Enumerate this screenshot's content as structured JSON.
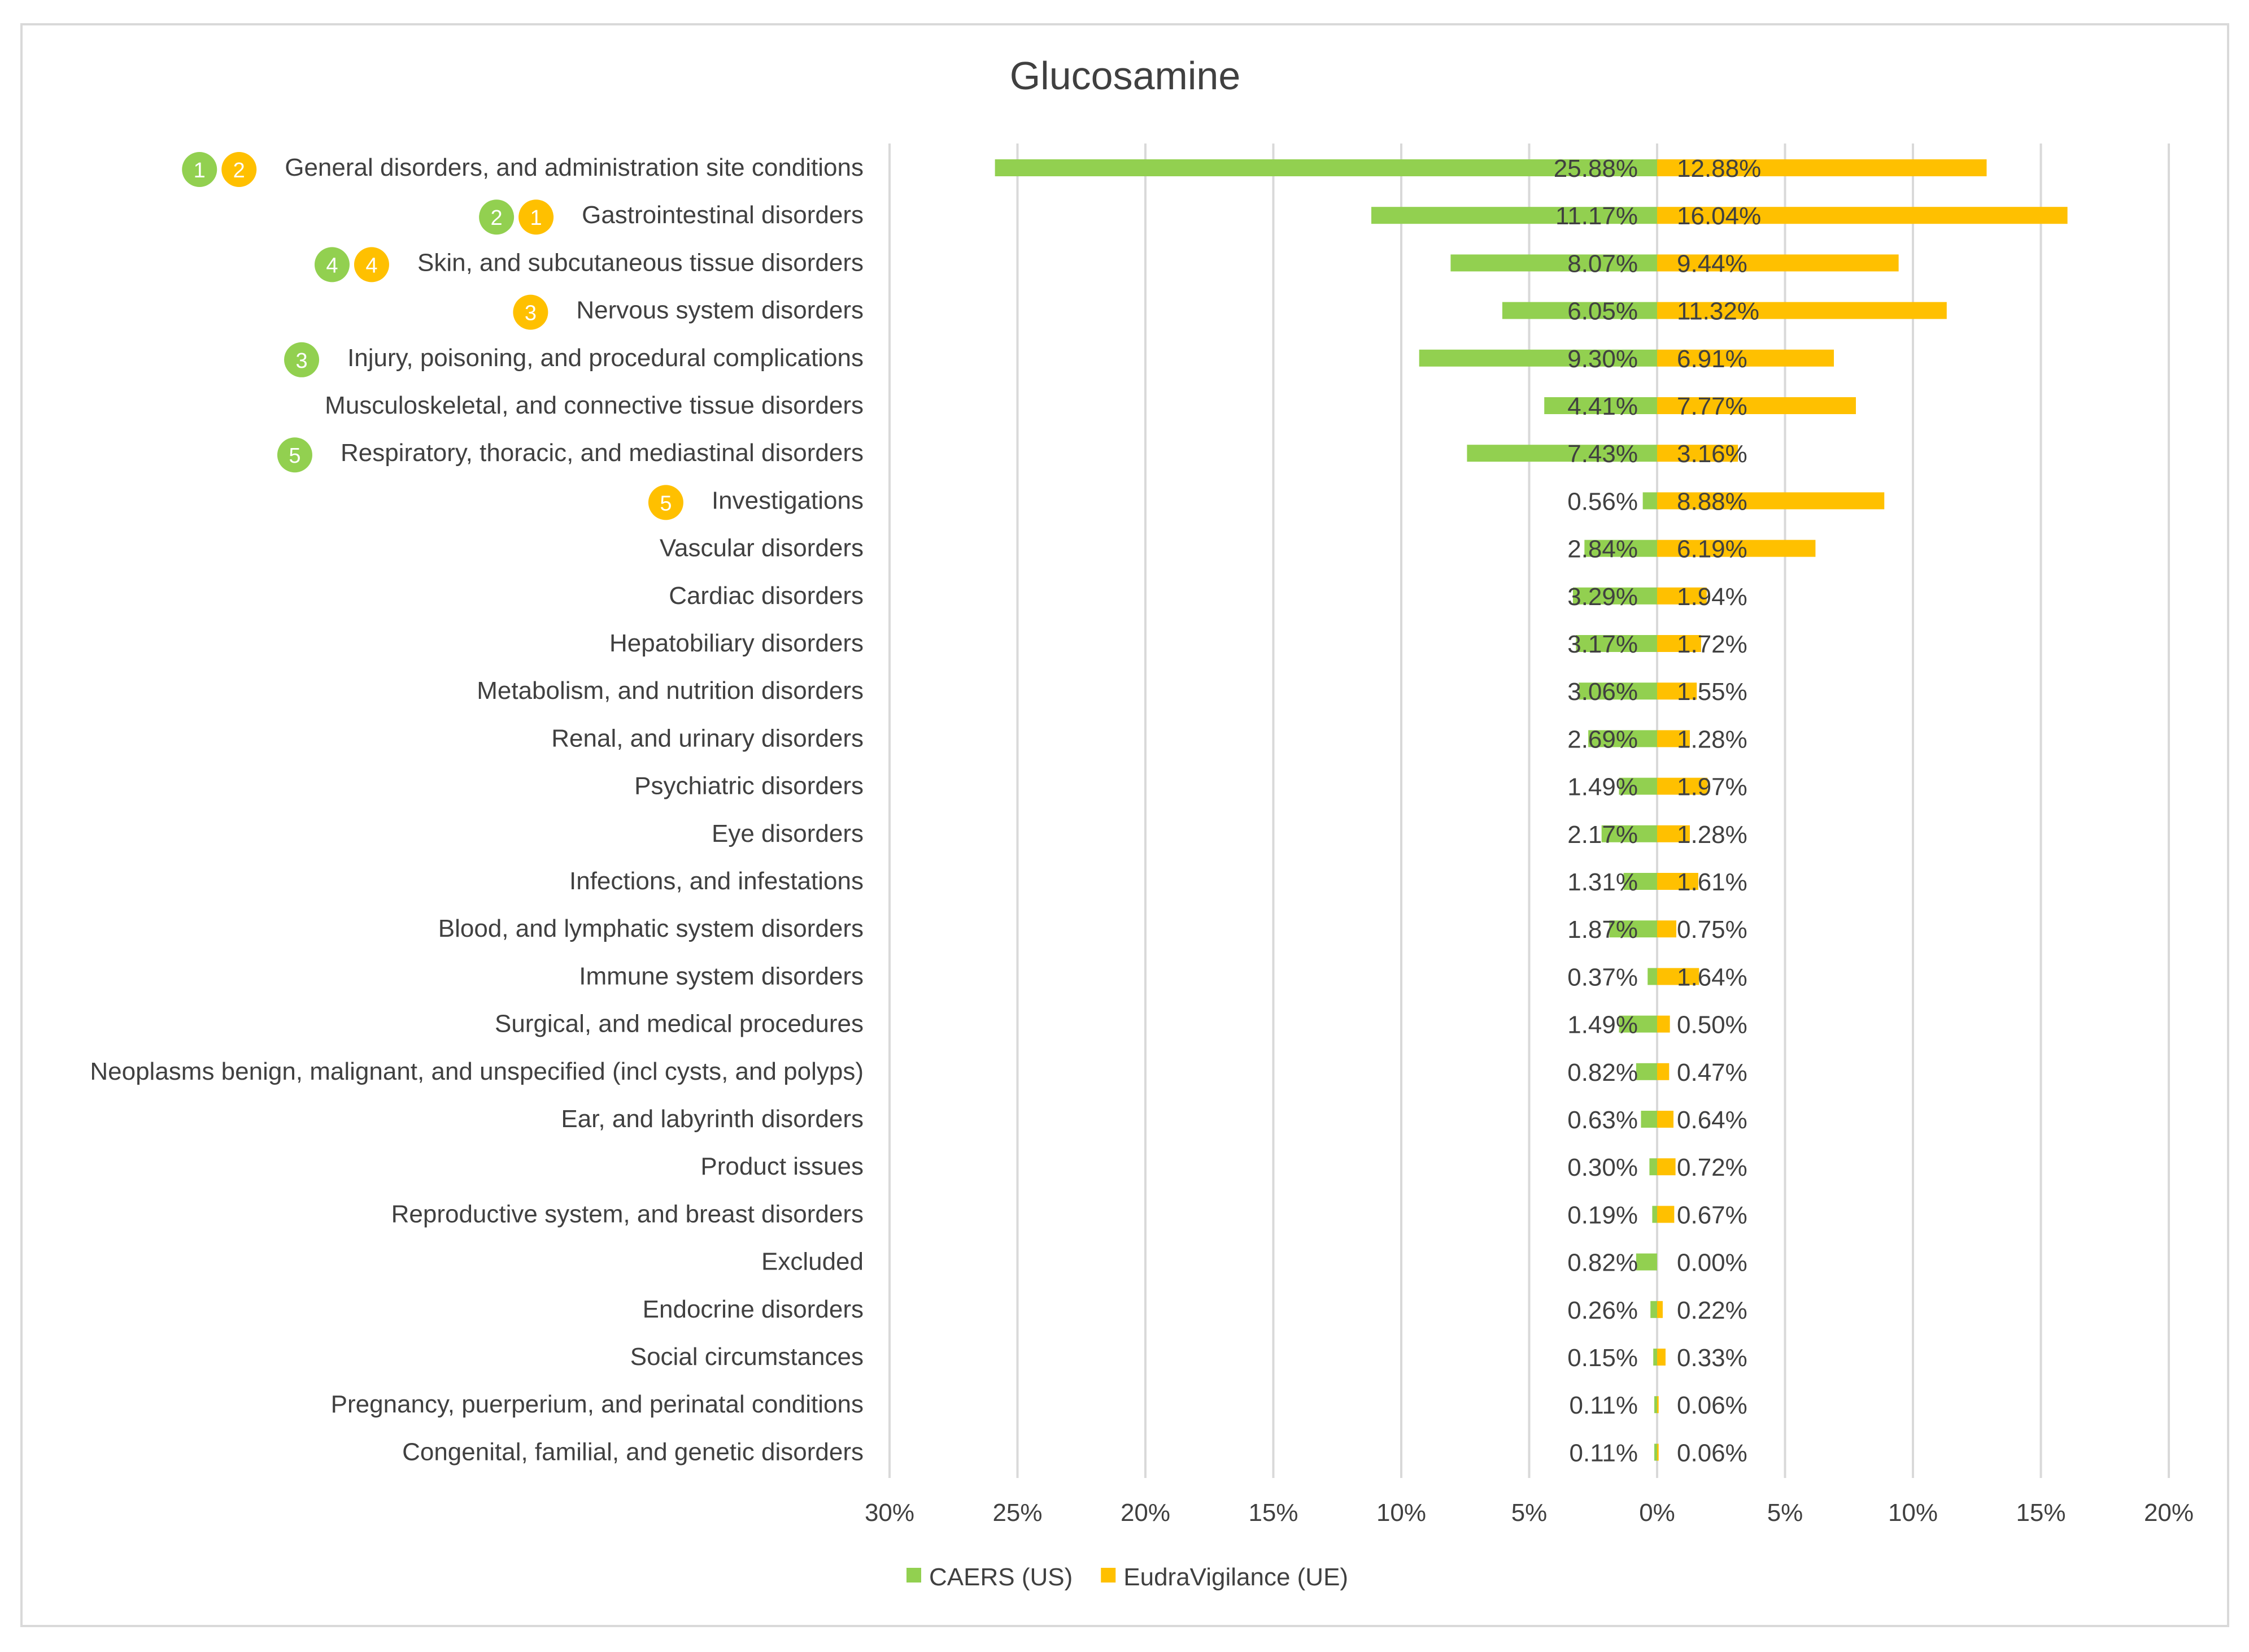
{
  "chart_data": {
    "type": "bar",
    "orientation": "horizontal-diverging",
    "title": "Glucosamine",
    "xlabel": "",
    "ylabel": "",
    "xlim": [
      -30,
      20
    ],
    "x_ticks": [
      "30%",
      "25%",
      "20%",
      "15%",
      "10%",
      "5%",
      "0%",
      "5%",
      "10%",
      "15%",
      "20%"
    ],
    "grid": true,
    "legend_position": "bottom",
    "categories": [
      "General disorders, and administration site conditions",
      "Gastrointestinal disorders",
      "Skin, and subcutaneous tissue disorders",
      "Nervous system disorders",
      "Injury, poisoning, and procedural complications",
      "Musculoskeletal, and connective tissue disorders",
      "Respiratory, thoracic, and mediastinal disorders",
      "Investigations",
      "Vascular disorders",
      "Cardiac disorders",
      "Hepatobiliary disorders",
      "Metabolism, and nutrition disorders",
      "Renal, and urinary disorders",
      "Psychiatric disorders",
      "Eye disorders",
      "Infections, and infestations",
      "Blood, and lymphatic system disorders",
      "Immune system disorders",
      "Surgical, and medical procedures",
      "Neoplasms benign, malignant, and unspecified (incl cysts, and polyps)",
      "Ear, and labyrinth disorders",
      "Product issues",
      "Reproductive system, and breast disorders",
      "Excluded",
      "Endocrine disorders",
      "Social circumstances",
      "Pregnancy, puerperium, and perinatal conditions",
      "Congenital, familial, and genetic disorders"
    ],
    "series": [
      {
        "name": "CAERS (US)",
        "color": "#92D050",
        "direction": "left",
        "values": [
          25.88,
          11.17,
          8.07,
          6.05,
          9.3,
          4.41,
          7.43,
          0.56,
          2.84,
          3.29,
          3.17,
          3.06,
          2.69,
          1.49,
          2.17,
          1.31,
          1.87,
          0.37,
          1.49,
          0.82,
          0.63,
          0.3,
          0.19,
          0.82,
          0.26,
          0.15,
          0.11,
          0.11
        ]
      },
      {
        "name": "EudraVigilance (UE)",
        "color": "#FFC000",
        "direction": "right",
        "values": [
          12.88,
          16.04,
          9.44,
          11.32,
          6.91,
          7.77,
          3.16,
          8.88,
          6.19,
          1.94,
          1.72,
          1.55,
          1.28,
          1.97,
          1.28,
          1.61,
          0.75,
          1.64,
          0.5,
          0.47,
          0.64,
          0.72,
          0.67,
          0.0,
          0.22,
          0.33,
          0.06,
          0.06
        ]
      }
    ],
    "rank_badges": [
      {
        "category_index": 0,
        "green": "1",
        "yellow": "2"
      },
      {
        "category_index": 1,
        "green": "2",
        "yellow": "1"
      },
      {
        "category_index": 2,
        "green": "4",
        "yellow": "4"
      },
      {
        "category_index": 3,
        "green": null,
        "yellow": "3"
      },
      {
        "category_index": 4,
        "green": "3",
        "yellow": null
      },
      {
        "category_index": 6,
        "green": "5",
        "yellow": null
      },
      {
        "category_index": 7,
        "green": null,
        "yellow": "5"
      }
    ]
  }
}
